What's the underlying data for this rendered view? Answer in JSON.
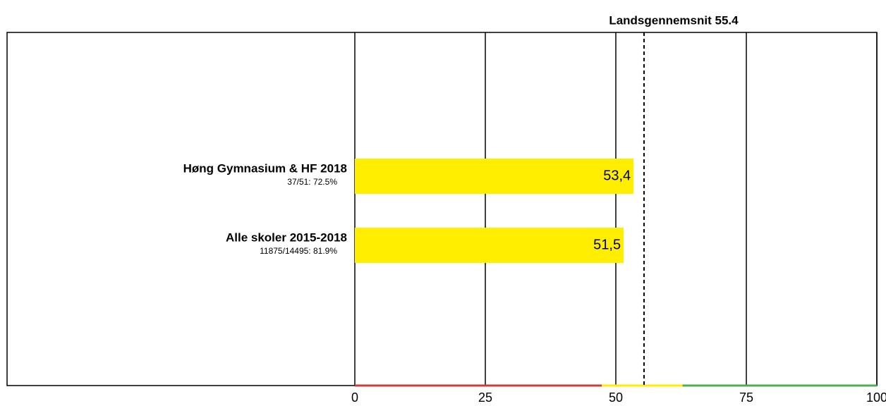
{
  "chart_data": {
    "type": "bar",
    "orientation": "horizontal",
    "categories": [
      "Høng Gymnasium & HF 2018",
      "Alle skoler 2015-2018"
    ],
    "category_notes": [
      "37/51: 72.5%",
      "11875/14495: 81.9%"
    ],
    "values": [
      53.4,
      51.5
    ],
    "value_labels": [
      "53,4",
      "51,5"
    ],
    "color": "#ffee00",
    "xlim": [
      0,
      100
    ],
    "xticks": [
      0,
      25,
      50,
      75,
      100
    ],
    "grid": true,
    "reference": {
      "value": 55.4,
      "label": "Landsgennemsnit 55.4"
    },
    "bands": [
      {
        "from": 0,
        "to": 47.3,
        "color": "#d03a3a"
      },
      {
        "from": 47.3,
        "to": 62.8,
        "color": "#ffee00"
      },
      {
        "from": 62.8,
        "to": 100,
        "color": "#4caf50"
      }
    ]
  }
}
